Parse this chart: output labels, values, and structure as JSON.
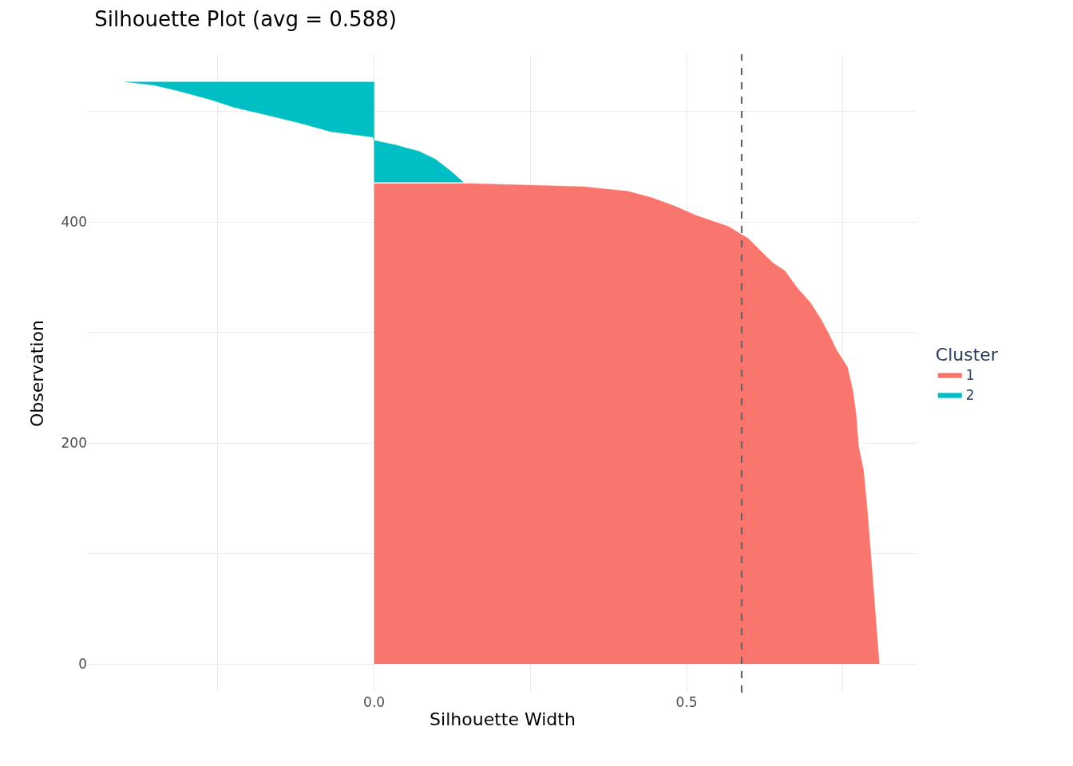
{
  "chart_data": {
    "type": "area",
    "orientation": "horizontal",
    "title": "Silhouette Plot (avg = 0.588)",
    "xlabel": "Silhouette Width",
    "ylabel": "Observation",
    "legend_title": "Cluster",
    "legend": "right",
    "grid": true,
    "xlim": [
      -0.458,
      0.869
    ],
    "xticks": [
      {
        "value": -0.25,
        "label": null
      },
      {
        "value": 0,
        "label": "0.0"
      },
      {
        "value": 0.25,
        "label": null
      },
      {
        "value": 0.5,
        "label": "0.5"
      },
      {
        "value": 0.75,
        "label": null
      }
    ],
    "ylim": [
      -26,
      552
    ],
    "yticks": [
      0,
      {
        "value": 100,
        "label": null
      },
      200,
      {
        "value": 300,
        "label": null
      },
      400,
      {
        "value": 500,
        "label": null
      }
    ],
    "ref_lines": [
      {
        "axis": "x",
        "value": 0.588,
        "color": "#666666",
        "line_style": "dashed"
      }
    ],
    "series": [
      {
        "name": "1",
        "color": "#f8766d",
        "x": [
          0,
          45,
          103,
          139,
          175,
          197,
          226,
          247,
          269,
          284,
          298,
          312,
          327,
          341,
          356,
          363,
          374,
          385,
          396,
          406,
          414,
          422,
          428,
          432,
          435
        ],
        "values": [
          0.808,
          0.802,
          0.794,
          0.789,
          0.783,
          0.775,
          0.771,
          0.766,
          0.757,
          0.74,
          0.728,
          0.715,
          0.698,
          0.676,
          0.657,
          0.638,
          0.618,
          0.599,
          0.567,
          0.515,
          0.483,
          0.445,
          0.406,
          0.335,
          0.149
        ]
      },
      {
        "name": "2",
        "color": "#00bfc4",
        "x": [
          436,
          446,
          457,
          464,
          470,
          474,
          477,
          482,
          490,
          497,
          504,
          511,
          519,
          524,
          527
        ],
        "values": [
          0.143,
          0.123,
          0.098,
          0.072,
          0.033,
          0.0,
          -0.002,
          -0.069,
          -0.121,
          -0.172,
          -0.224,
          -0.262,
          -0.314,
          -0.352,
          -0.398
        ]
      }
    ]
  }
}
